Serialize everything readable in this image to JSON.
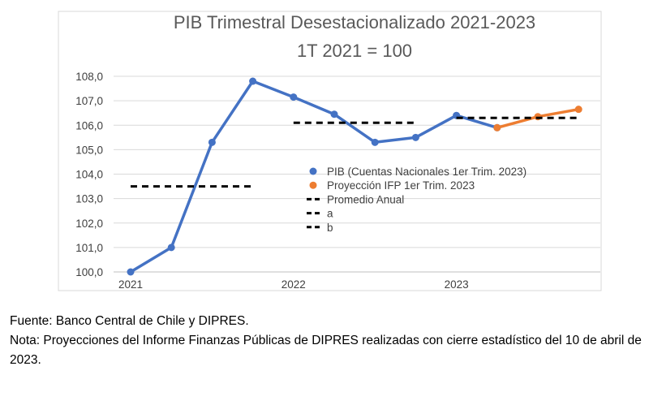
{
  "chart_data": {
    "type": "line",
    "title": "PIB Trimestral Desestacionalizado 2021-2023",
    "subtitle": "1T 2021 = 100",
    "xlabel": "",
    "ylabel": "",
    "ylim": [
      100,
      108
    ],
    "y_ticks": [
      "100,0",
      "101,0",
      "102,0",
      "103,0",
      "104,0",
      "105,0",
      "106,0",
      "107,0",
      "108,0"
    ],
    "year_labels": [
      "2021",
      "2022",
      "2023"
    ],
    "legend_position": "right-center inside plot",
    "grid": "horizontal",
    "series": [
      {
        "name": "PIB (Cuentas Nacionales 1er Trim. 2023)",
        "color": "#4472C4",
        "style": "line-markers",
        "points": [
          {
            "q": 0,
            "y": 100.0
          },
          {
            "q": 1,
            "y": 101.0
          },
          {
            "q": 2,
            "y": 105.3
          },
          {
            "q": 3,
            "y": 107.8
          },
          {
            "q": 4,
            "y": 107.15
          },
          {
            "q": 5,
            "y": 106.45
          },
          {
            "q": 6,
            "y": 105.3
          },
          {
            "q": 7,
            "y": 105.5
          },
          {
            "q": 8,
            "y": 106.4
          },
          {
            "q": 9,
            "y": 105.9
          }
        ]
      },
      {
        "name": "Proyección IFP 1er Trim. 2023",
        "color": "#ED7D31",
        "style": "line-markers",
        "points": [
          {
            "q": 9,
            "y": 105.9
          },
          {
            "q": 10,
            "y": 106.35
          },
          {
            "q": 11,
            "y": 106.65
          }
        ]
      },
      {
        "name": "Promedio Anual",
        "color": "#000000",
        "style": "dashed",
        "points": [
          {
            "q": 0,
            "y": 103.5
          },
          {
            "q": 3,
            "y": 103.5
          }
        ]
      },
      {
        "name": "a",
        "color": "#000000",
        "style": "dashed",
        "points": [
          {
            "q": 4,
            "y": 106.1
          },
          {
            "q": 7,
            "y": 106.1
          }
        ]
      },
      {
        "name": "b",
        "color": "#000000",
        "style": "dashed",
        "points": [
          {
            "q": 8,
            "y": 106.3
          },
          {
            "q": 11,
            "y": 106.3
          }
        ]
      }
    ]
  },
  "notes": {
    "source": "Fuente: Banco Central de Chile y DIPRES.",
    "note": "Nota: Proyecciones del Informe Finanzas Públicas de DIPRES realizadas con cierre estadístico del 10 de abril de 2023."
  }
}
